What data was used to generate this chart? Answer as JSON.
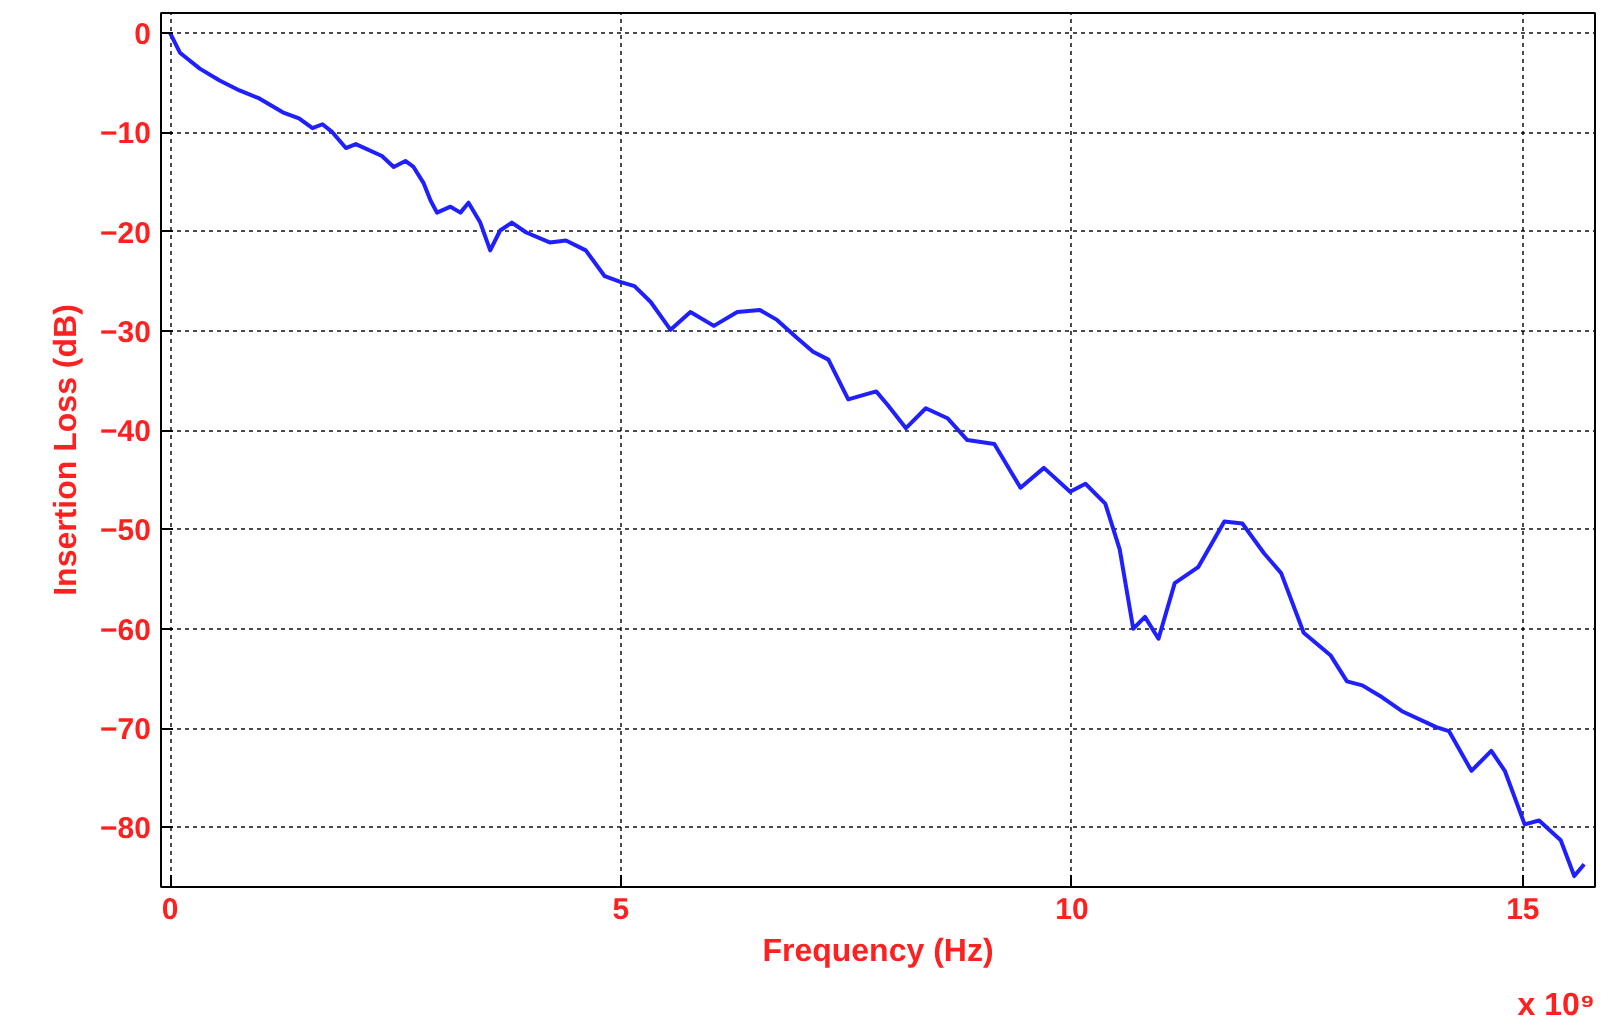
{
  "chart_data": {
    "type": "line",
    "xlabel": "Frequency (Hz)",
    "ylabel": "Insertion Loss (dB)",
    "annotations": [
      "x 10⁹"
    ],
    "xlim": [
      -0.1,
      15.8
    ],
    "ylim": [
      -86,
      2
    ],
    "xticks": [
      0,
      5,
      10,
      15
    ],
    "yticks": [
      -80,
      -70,
      -60,
      -50,
      -40,
      -30,
      -20,
      -10,
      0
    ],
    "grid": true,
    "marker": "none",
    "line_style": "solid",
    "x": [
      0,
      0.11,
      0.33,
      0.55,
      0.77,
      0.99,
      1.25,
      1.43,
      1.58,
      1.69,
      1.8,
      1.95,
      2.06,
      2.35,
      2.48,
      2.61,
      2.7,
      2.81,
      2.89,
      2.96,
      3.11,
      3.22,
      3.31,
      3.44,
      3.55,
      3.66,
      3.79,
      3.95,
      4.21,
      4.39,
      4.61,
      4.82,
      5.0,
      5.15,
      5.33,
      5.55,
      5.77,
      6.03,
      6.29,
      6.54,
      6.73,
      6.95,
      7.13,
      7.3,
      7.52,
      7.83,
      7.96,
      8.16,
      8.38,
      8.62,
      8.84,
      9.14,
      9.43,
      9.69,
      9.98,
      10.15,
      10.37,
      10.53,
      10.68,
      10.81,
      10.96,
      11.14,
      11.4,
      11.69,
      11.89,
      12.13,
      12.32,
      12.57,
      12.87,
      13.05,
      13.22,
      13.44,
      13.66,
      14.04,
      14.18,
      14.43,
      14.65,
      14.8,
      15.02,
      15.18,
      15.42,
      15.57,
      15.68
    ],
    "series": [
      {
        "color": "#2020ff",
        "values": [
          0,
          -2,
          -3.6,
          -4.8,
          -5.8,
          -6.6,
          -8,
          -8.6,
          -9.6,
          -9.2,
          -10,
          -11.6,
          -11.2,
          -12.4,
          -13.5,
          -12.9,
          -13.5,
          -15.1,
          -16.9,
          -18.1,
          -17.5,
          -18.1,
          -17.1,
          -19.1,
          -21.9,
          -19.9,
          -19.1,
          -20.1,
          -21.1,
          -20.9,
          -21.9,
          -24.5,
          -25.1,
          -25.5,
          -27.1,
          -29.9,
          -28.1,
          -29.5,
          -28.1,
          -27.9,
          -28.9,
          -30.7,
          -32.1,
          -32.9,
          -36.9,
          -36.1,
          -37.5,
          -39.8,
          -37.8,
          -38.8,
          -41,
          -41.4,
          -45.8,
          -43.8,
          -46.2,
          -45.4,
          -47.4,
          -52,
          -60,
          -58.8,
          -61,
          -55.4,
          -53.8,
          -49.2,
          -49.4,
          -52.4,
          -54.4,
          -60.4,
          -62.7,
          -65.3,
          -65.7,
          -66.9,
          -68.3,
          -69.9,
          -70.3,
          -74.3,
          -72.3,
          -74.3,
          -79.7,
          -79.3,
          -81.3,
          -84.9,
          -83.7
        ]
      }
    ]
  }
}
